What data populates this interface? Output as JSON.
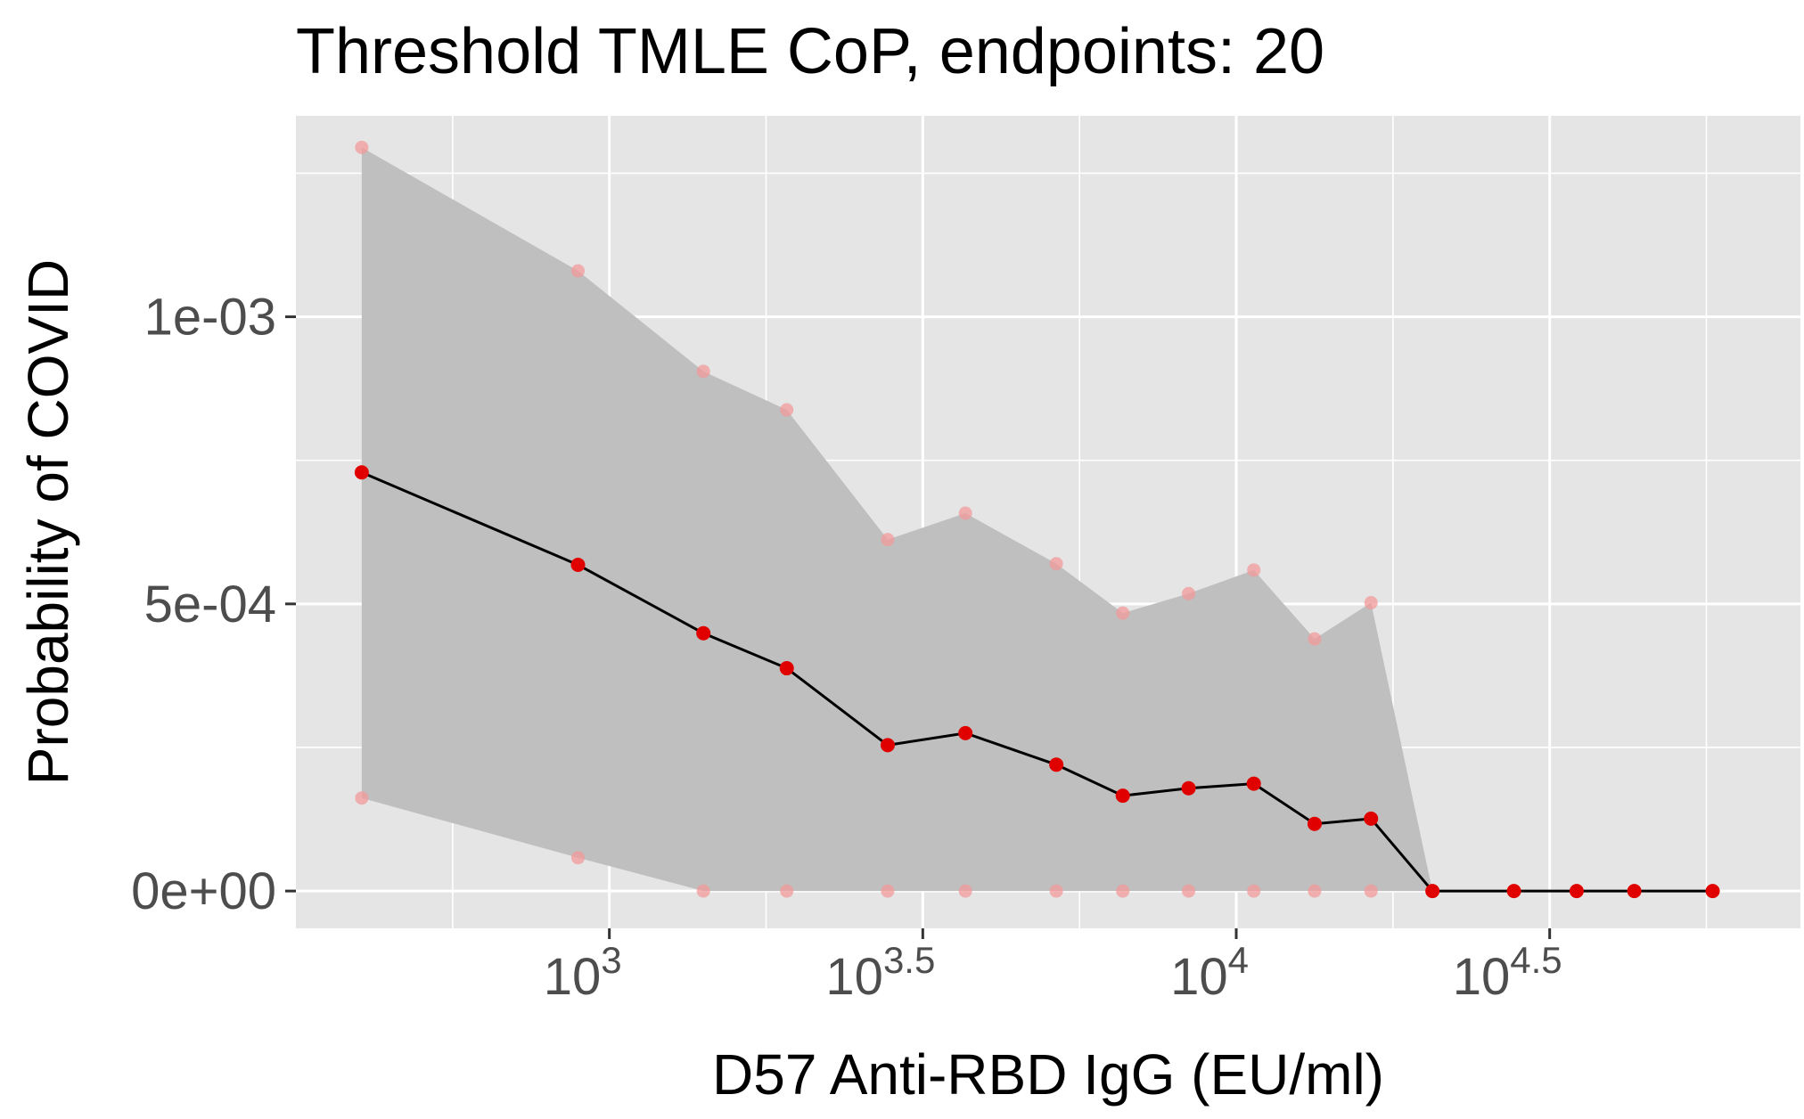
{
  "chart_data": {
    "type": "line",
    "title": "Threshold TMLE CoP, endpoints: 20",
    "xlabel": "D57 Anti-RBD IgG (EU/ml)",
    "ylabel": "Probability of COVID",
    "x_scale": "log10",
    "x_ticks": [
      {
        "value": 3.0,
        "base": "10",
        "exp": "3"
      },
      {
        "value": 3.5,
        "base": "10",
        "exp": "3.5"
      },
      {
        "value": 4.0,
        "base": "10",
        "exp": "4"
      },
      {
        "value": 4.5,
        "base": "10",
        "exp": "4.5"
      }
    ],
    "y_ticks": [
      {
        "value": 0.0,
        "label": "0e+00"
      },
      {
        "value": 0.0005,
        "label": "5e-04"
      },
      {
        "value": 0.001,
        "label": "1e-03"
      }
    ],
    "xlim_log10": [
      2.5,
      4.9
    ],
    "ylim": [
      -6.5e-05,
      0.00135
    ],
    "grid": true,
    "colors": {
      "panel_background": "#e5e5e5",
      "grid": "#ffffff",
      "band": "#bfbfbf",
      "line": "#000000",
      "point": "#e00000",
      "ci_point": "#f29a9a"
    },
    "log10_x": [
      2.605,
      2.95,
      3.15,
      3.283,
      3.444,
      3.568,
      3.713,
      3.819,
      3.924,
      4.028,
      4.125,
      4.215,
      4.313,
      4.443,
      4.543,
      4.635,
      4.76
    ],
    "estimate": [
      0.000729,
      0.000568,
      0.000449,
      0.000388,
      0.000254,
      0.000275,
      0.00022,
      0.000166,
      0.000179,
      0.000187,
      0.000117,
      0.000126,
      0.0,
      0.0,
      0.0,
      0.0,
      0.0
    ],
    "ci_upper": [
      0.001295,
      0.00108,
      0.000905,
      0.000838,
      0.000612,
      0.000658,
      0.00057,
      0.000484,
      0.000518,
      0.000559,
      0.000439,
      0.000502
    ],
    "ci_lower": [
      0.000162,
      5.8e-05,
      0.0,
      0.0,
      0.0,
      0.0,
      0.0,
      0.0,
      0.0,
      0.0,
      0.0,
      0.0
    ]
  }
}
